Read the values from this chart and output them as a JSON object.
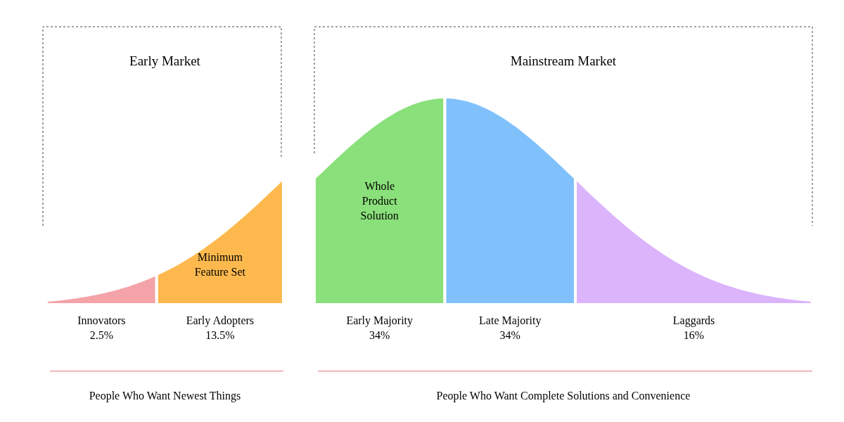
{
  "chart_data": {
    "type": "other",
    "categories": [
      "Innovators",
      "Early Adopters",
      "Early Majority",
      "Late Majority",
      "Laggards"
    ],
    "values": [
      2.5,
      13.5,
      34,
      34,
      16
    ],
    "value_labels": [
      "2.5%",
      "13.5%",
      "34%",
      "34%",
      "16%"
    ],
    "colors": [
      "#f4a3a8",
      "#fdb94e",
      "#8ae07a",
      "#80c1fc",
      "#dbb4fb"
    ],
    "annotations": [
      "Early Market",
      "Mainstream Market",
      "People Who Want Newest Things",
      "People Who Want Complete Solutions and Convenience",
      "Minimum Feature Set",
      "Whole Product Solution"
    ]
  }
}
